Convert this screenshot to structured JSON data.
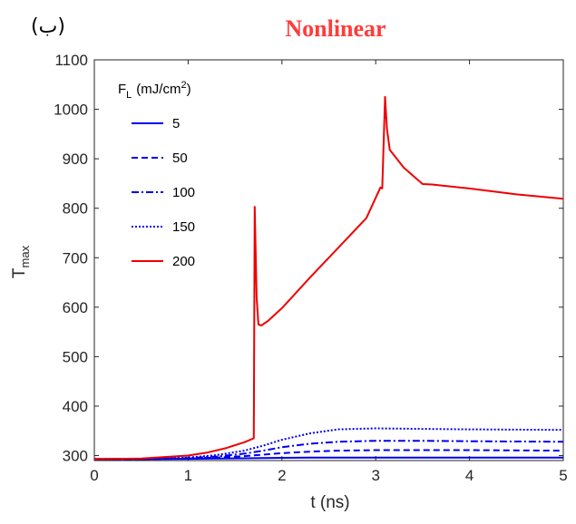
{
  "panel_label": "(ب)",
  "chart_data": {
    "type": "line",
    "title": "Nonlinear",
    "xlabel": "t (ns)",
    "ylabel": {
      "main": "T",
      "subscript": "max"
    },
    "xlim": [
      0,
      5
    ],
    "ylim": [
      290,
      1100
    ],
    "xticks": [
      0,
      1,
      2,
      3,
      4,
      5
    ],
    "yticks": [
      300,
      400,
      500,
      600,
      700,
      800,
      900,
      1000,
      1100
    ],
    "grid": false,
    "legend": {
      "placement": "top-left",
      "title": {
        "main": "F",
        "subscript": "L",
        "unit": "(mJ/cm",
        "sup": "2",
        "close": ")"
      }
    },
    "series": [
      {
        "name": "5",
        "color": "#0000ee",
        "dash": "solid",
        "x": [
          0,
          0.5,
          1.0,
          1.3,
          1.6,
          1.8,
          2.0,
          2.3,
          2.6,
          3.0,
          3.5,
          4.0,
          5.0
        ],
        "y": [
          293,
          293,
          293.5,
          294,
          294.5,
          295,
          295.5,
          296,
          296,
          296,
          296,
          296,
          296
        ]
      },
      {
        "name": "50",
        "color": "#0000ee",
        "dash": "dashed",
        "x": [
          0,
          0.5,
          1.0,
          1.3,
          1.6,
          1.8,
          2.0,
          2.3,
          2.6,
          3.0,
          3.5,
          4.0,
          5.0
        ],
        "y": [
          293,
          293,
          294,
          296,
          299,
          302,
          305,
          308,
          310,
          311,
          311,
          311,
          310
        ]
      },
      {
        "name": "100",
        "color": "#0000ee",
        "dash": "dashdot",
        "x": [
          0,
          0.5,
          1.0,
          1.3,
          1.6,
          1.8,
          2.0,
          2.3,
          2.6,
          3.0,
          3.5,
          4.0,
          5.0
        ],
        "y": [
          293,
          293,
          295,
          298,
          304,
          310,
          317,
          324,
          328,
          330,
          330,
          329,
          328
        ]
      },
      {
        "name": "150",
        "color": "#0000ee",
        "dash": "dotted",
        "x": [
          0,
          0.5,
          1.0,
          1.3,
          1.6,
          1.8,
          2.0,
          2.3,
          2.6,
          3.0,
          3.5,
          4.0,
          5.0
        ],
        "y": [
          293,
          293,
          296,
          301,
          310,
          320,
          332,
          345,
          353,
          355,
          354,
          353,
          352
        ]
      },
      {
        "name": "200",
        "color": "#ee0000",
        "dash": "solid",
        "x": [
          0,
          0.5,
          1.0,
          1.2,
          1.4,
          1.6,
          1.7,
          1.71,
          1.73,
          1.75,
          1.78,
          1.85,
          2.0,
          2.3,
          2.6,
          2.9,
          3.05,
          3.07,
          3.1,
          3.12,
          3.15,
          3.3,
          3.5,
          3.6,
          4.0,
          4.5,
          5.0
        ],
        "y": [
          293,
          294,
          300,
          306,
          315,
          327,
          335,
          803,
          620,
          565,
          563,
          572,
          598,
          660,
          720,
          780,
          842,
          840,
          1025,
          960,
          918,
          882,
          849,
          848,
          840,
          828,
          819
        ]
      }
    ]
  }
}
